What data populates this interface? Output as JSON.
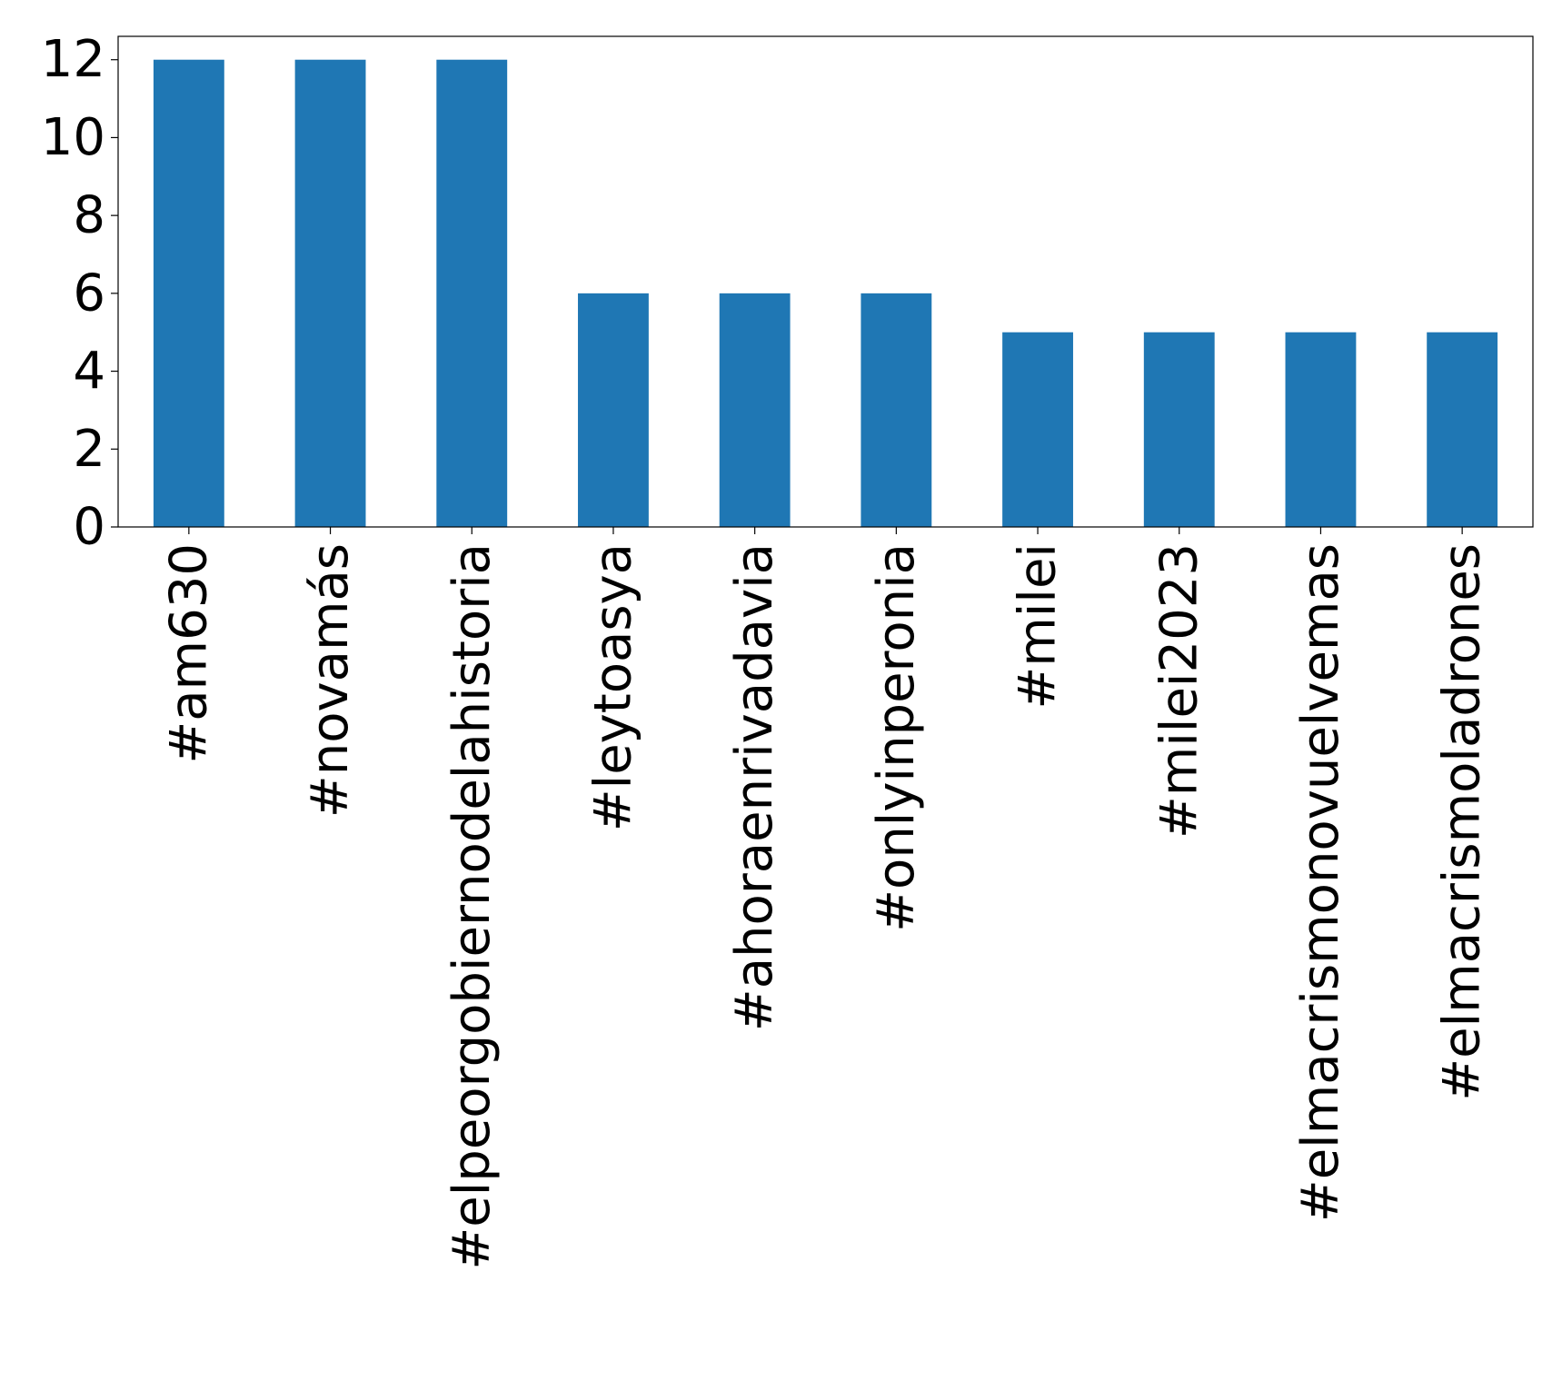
{
  "chart_data": {
    "type": "bar",
    "title": "",
    "xlabel": "",
    "ylabel": "",
    "categories": [
      "#am630",
      "#novamás",
      "#elpeorgobiernodelahistoria",
      "#leytoasya",
      "#ahoraenrivadavia",
      "#onlyinperonia",
      "#milei",
      "#milei2023",
      "#elmacrismonovuelvemas",
      "#elmacrismoladrones"
    ],
    "values": [
      12,
      12,
      12,
      6,
      6,
      6,
      5,
      5,
      5,
      5
    ],
    "ylim": [
      0,
      12.6
    ],
    "yticks": [
      0,
      2,
      4,
      6,
      8,
      10,
      12
    ],
    "bar_color": "#1f77b4",
    "grid": false,
    "legend": "none"
  }
}
